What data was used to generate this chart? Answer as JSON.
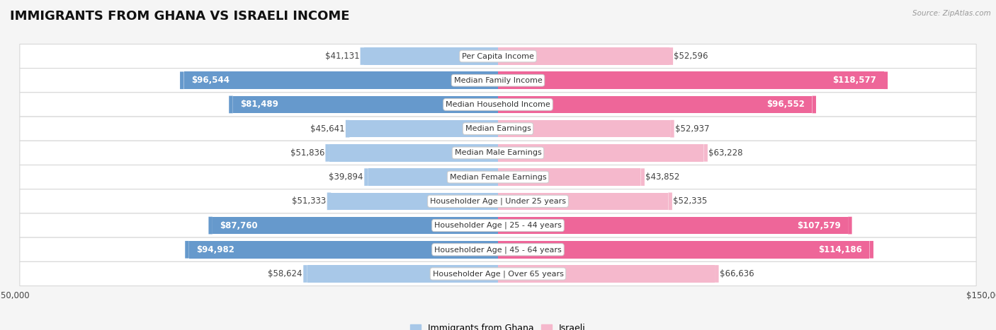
{
  "title": "IMMIGRANTS FROM GHANA VS ISRAELI INCOME",
  "source": "Source: ZipAtlas.com",
  "categories": [
    "Per Capita Income",
    "Median Family Income",
    "Median Household Income",
    "Median Earnings",
    "Median Male Earnings",
    "Median Female Earnings",
    "Householder Age | Under 25 years",
    "Householder Age | 25 - 44 years",
    "Householder Age | 45 - 64 years",
    "Householder Age | Over 65 years"
  ],
  "ghana_values": [
    41131,
    96544,
    81489,
    45641,
    51836,
    39894,
    51333,
    87760,
    94982,
    58624
  ],
  "israeli_values": [
    52596,
    118577,
    96552,
    52937,
    63228,
    43852,
    52335,
    107579,
    114186,
    66636
  ],
  "ghana_labels": [
    "$41,131",
    "$96,544",
    "$81,489",
    "$45,641",
    "$51,836",
    "$39,894",
    "$51,333",
    "$87,760",
    "$94,982",
    "$58,624"
  ],
  "israeli_labels": [
    "$52,596",
    "$118,577",
    "$96,552",
    "$52,937",
    "$63,228",
    "$43,852",
    "$52,335",
    "$107,579",
    "$114,186",
    "$66,636"
  ],
  "ghana_color_light": "#a8c8e8",
  "ghana_color_dark": "#6699cc",
  "israeli_color_light": "#f5b8cc",
  "israeli_color_dark": "#ee6699",
  "bar_height": 0.72,
  "max_value": 150000,
  "row_bg_color": "#f0f0f0",
  "row_border_color": "#d8d8d8",
  "fig_bg": "#f5f5f5",
  "title_fontsize": 13,
  "label_fontsize": 8.5,
  "cat_fontsize": 8,
  "legend_fontsize": 9,
  "axis_label_fontsize": 8.5,
  "ghana_inside_threshold": 75000,
  "israeli_inside_threshold": 75000
}
